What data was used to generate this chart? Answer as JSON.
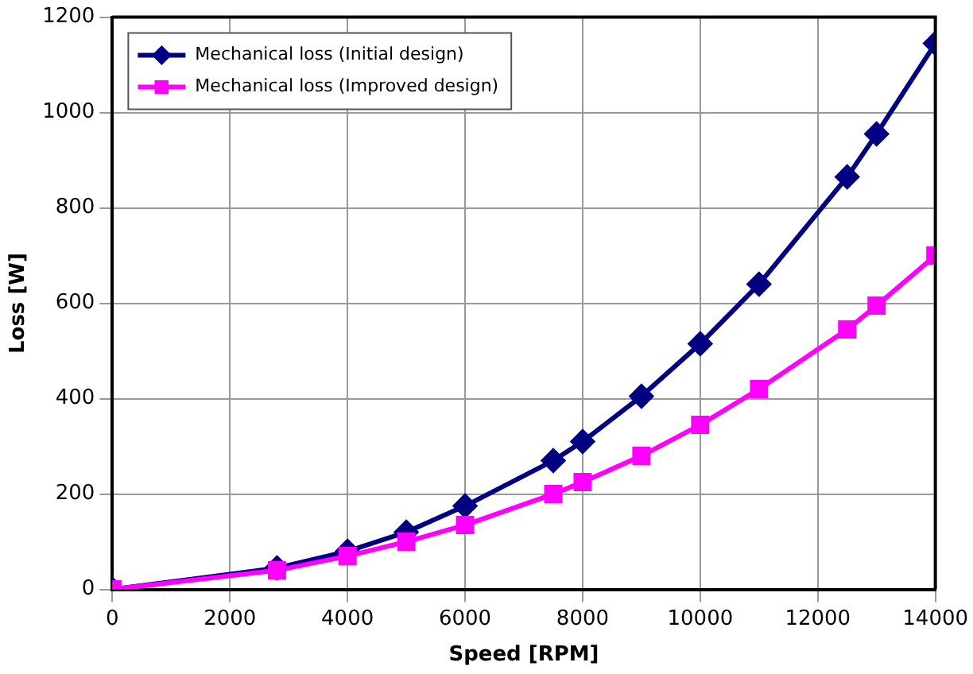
{
  "chart_data": {
    "type": "line",
    "xlabel": "Speed [RPM]",
    "ylabel": "Loss [W]",
    "xlim": [
      0,
      14000
    ],
    "xticks": [
      0,
      2000,
      4000,
      6000,
      8000,
      10000,
      12000,
      14000
    ],
    "ylim": [
      0,
      1200
    ],
    "yticks": [
      0,
      200,
      400,
      600,
      800,
      1000,
      1200
    ],
    "grid": true,
    "legend": "top left",
    "line_style": "solid",
    "series": [
      {
        "name": "Mechanical loss (Initial design)",
        "color": "#000080",
        "marker": "diamond",
        "x": [
          0,
          2800,
          4000,
          5000,
          6000,
          7500,
          8000,
          9000,
          10000,
          11000,
          12500,
          13000,
          14000
        ],
        "values": [
          0,
          45,
          80,
          120,
          175,
          270,
          310,
          405,
          515,
          640,
          865,
          955,
          1145
        ]
      },
      {
        "name": "Mechanical loss (Improved design)",
        "color": "#ff00ff",
        "marker": "square",
        "x": [
          0,
          2800,
          4000,
          5000,
          6000,
          7500,
          8000,
          9000,
          10000,
          11000,
          12500,
          13000,
          14000
        ],
        "values": [
          0,
          40,
          70,
          100,
          135,
          200,
          225,
          280,
          345,
          420,
          545,
          595,
          700
        ]
      }
    ]
  }
}
